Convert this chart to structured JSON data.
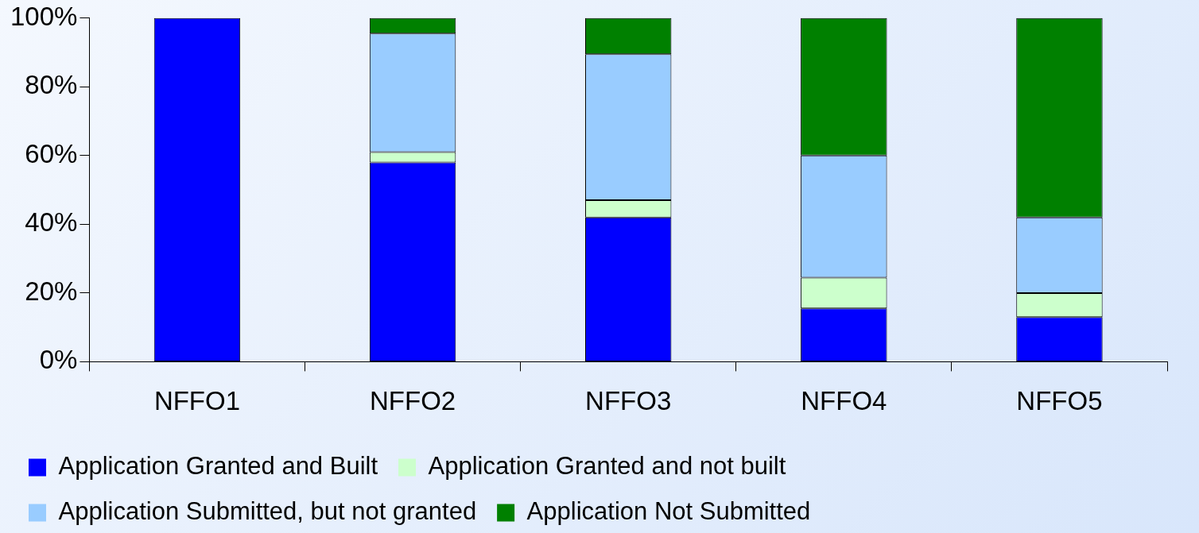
{
  "chart_data": {
    "type": "bar",
    "stacked": true,
    "categories": [
      "NFFO1",
      "NFFO2",
      "NFFO3",
      "NFFO4",
      "NFFO5"
    ],
    "series": [
      {
        "name": "Application Granted and Built",
        "color": "#0000ff",
        "values": [
          100,
          58,
          42,
          15.5,
          13
        ]
      },
      {
        "name": "Application Granted and not built",
        "color": "#ccffcc",
        "values": [
          0,
          3,
          5,
          9,
          7
        ]
      },
      {
        "name": "Application Submitted, but not granted",
        "color": "#99ccff",
        "values": [
          0,
          34.5,
          42.5,
          35.5,
          22
        ]
      },
      {
        "name": "Application Not Submitted",
        "color": "#008000",
        "values": [
          0,
          4.5,
          10.5,
          40,
          58
        ]
      }
    ],
    "ylim": [
      0,
      100
    ],
    "yticks": [
      {
        "value": 0,
        "label": "0%"
      },
      {
        "value": 20,
        "label": "20%"
      },
      {
        "value": 40,
        "label": "40%"
      },
      {
        "value": 60,
        "label": "60%"
      },
      {
        "value": 80,
        "label": "80%"
      },
      {
        "value": 100,
        "label": "100%"
      }
    ],
    "grid": false,
    "legend": "bottom"
  }
}
